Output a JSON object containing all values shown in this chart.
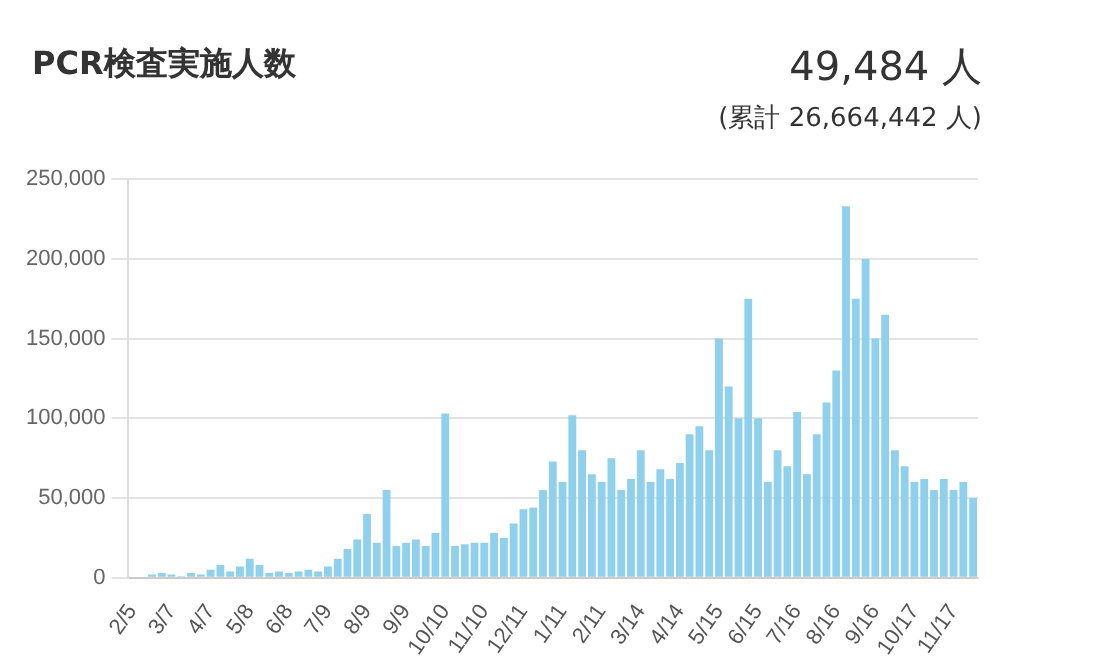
{
  "chart_data": {
    "type": "bar",
    "title": "PCR検査実施人数",
    "annotations": [
      "49,484 人",
      "(累計 26,664,442 人)"
    ],
    "categories": [
      "2/5",
      null,
      null,
      null,
      "3/7",
      null,
      null,
      null,
      "4/7",
      null,
      null,
      null,
      "5/8",
      null,
      null,
      null,
      "6/8",
      null,
      null,
      null,
      "7/9",
      null,
      null,
      null,
      "8/9",
      null,
      null,
      null,
      "9/9",
      null,
      null,
      null,
      "10/10",
      null,
      null,
      null,
      "11/10",
      null,
      null,
      null,
      "12/11",
      null,
      null,
      null,
      "1/11",
      null,
      null,
      null,
      "2/11",
      null,
      null,
      null,
      "3/14",
      null,
      null,
      null,
      "4/14",
      null,
      null,
      null,
      "5/15",
      null,
      null,
      null,
      "6/15",
      null,
      null,
      null,
      "7/16",
      null,
      null,
      null,
      "8/16",
      null,
      null,
      null,
      "9/16",
      null,
      null,
      null,
      "10/17",
      null,
      null,
      null,
      "11/17",
      null,
      null
    ],
    "values": [
      0,
      0,
      2000,
      3000,
      2000,
      1000,
      3000,
      2000,
      5000,
      8000,
      4000,
      7000,
      12000,
      8000,
      3000,
      4000,
      3000,
      4000,
      5000,
      4000,
      7000,
      12000,
      18000,
      24000,
      40000,
      22000,
      55000,
      20000,
      22000,
      24000,
      20000,
      28000,
      103000,
      20000,
      21000,
      22000,
      22000,
      28000,
      25000,
      34000,
      43000,
      44000,
      55000,
      73000,
      60000,
      102000,
      80000,
      65000,
      60000,
      75000,
      55000,
      62000,
      80000,
      60000,
      68000,
      62000,
      72000,
      90000,
      95000,
      80000,
      150000,
      120000,
      100000,
      175000,
      100000,
      60000,
      80000,
      70000,
      104000,
      65000,
      90000,
      110000,
      130000,
      233000,
      175000,
      200000,
      150000,
      165000,
      80000,
      70000,
      60000,
      62000,
      55000,
      62000,
      55000,
      60000,
      50000
    ],
    "color": "#8fd0ec",
    "ylim": [
      0,
      250000
    ],
    "yticks": [
      0,
      {
        "value": 50000,
        "label": "50,000"
      },
      {
        "value": 100000,
        "label": "100,000"
      },
      {
        "value": 150000,
        "label": "150,000"
      },
      {
        "value": 200000,
        "label": "200,000"
      },
      {
        "value": 250000,
        "label": "250,000"
      }
    ],
    "grid": "y",
    "legend": false
  }
}
